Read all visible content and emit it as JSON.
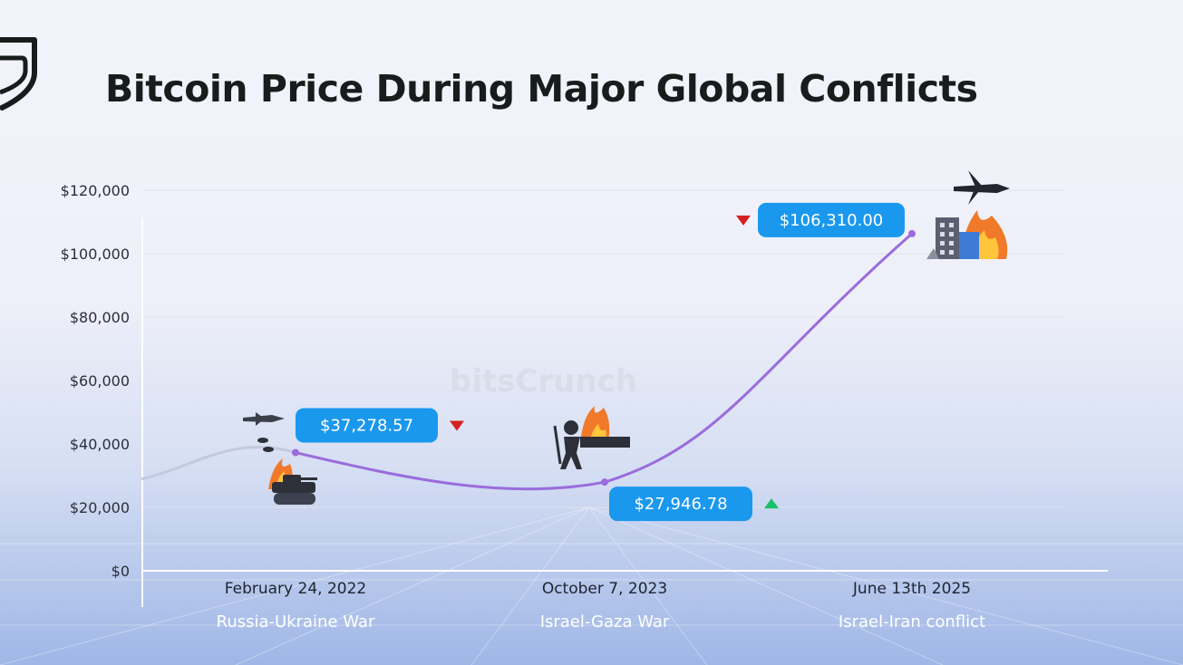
{
  "title": "Bitcoin Price During Major Global Conflicts",
  "watermark": "bitsCrunch",
  "colors": {
    "line": "#9b6cdc",
    "line_faded": "#c3c9df",
    "pill": "#1a98ee",
    "down": "#d62020",
    "up": "#18c06a",
    "title": "#171d1c"
  },
  "chart_data": {
    "type": "line",
    "title": "Bitcoin Price During Major Global Conflicts",
    "xlabel": "",
    "ylabel": "",
    "ylim": [
      0,
      120000
    ],
    "y_ticks": [
      {
        "value": 0,
        "label": "$0"
      },
      {
        "value": 20000,
        "label": "$20,000"
      },
      {
        "value": 40000,
        "label": "$40,000"
      },
      {
        "value": 60000,
        "label": "$60,000"
      },
      {
        "value": 80000,
        "label": "$80,000"
      },
      {
        "value": 100000,
        "label": "$100,000"
      },
      {
        "value": 120000,
        "label": "$120,000"
      }
    ],
    "grid": true,
    "points": [
      {
        "date": "February 24, 2022",
        "event": "Russia-Ukraine War",
        "value": 37278.57,
        "label": "$37,278.57",
        "trend": "down",
        "icon": "tank-fighter-jet-icon"
      },
      {
        "date": "October 7, 2023",
        "event": "Israel-Gaza War",
        "value": 27946.78,
        "label": "$27,946.78",
        "trend": "up",
        "icon": "soldier-city-fire-icon"
      },
      {
        "date": "June 13th 2025",
        "event": "Israel-Iran conflict",
        "value": 106310.0,
        "label": "$106,310.00",
        "trend": "down",
        "icon": "jet-building-fire-icon"
      }
    ]
  }
}
